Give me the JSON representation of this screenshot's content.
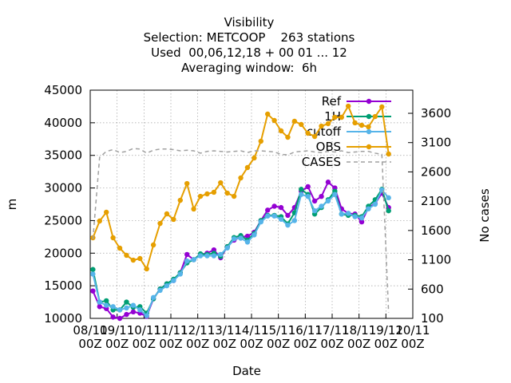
{
  "chart_data": {
    "type": "line",
    "title": [
      "Visibility",
      "Selection: METCOOP    263 stations",
      "Used  00,06,12,18 + 00 01 ... 12",
      "Averaging window:  6h"
    ],
    "xlabel": "Date",
    "ylabel": "m",
    "y2label": "No cases",
    "xlim": [
      0,
      12
    ],
    "xticks": [
      {
        "value": 0,
        "label": "08/11\n00Z"
      },
      {
        "value": 1,
        "label": "09/11\n00Z"
      },
      {
        "value": 2,
        "label": "10/11\n00Z"
      },
      {
        "value": 3,
        "label": "11/11\n00Z"
      },
      {
        "value": 4,
        "label": "12/11\n00Z"
      },
      {
        "value": 5,
        "label": "13/11\n00Z"
      },
      {
        "value": 6,
        "label": "14/11\n00Z"
      },
      {
        "value": 7,
        "label": "15/11\n00Z"
      },
      {
        "value": 8,
        "label": "16/11\n00Z"
      },
      {
        "value": 9,
        "label": "17/11\n00Z"
      },
      {
        "value": 10,
        "label": "18/11\n00Z"
      },
      {
        "value": 11,
        "label": "19/11\n00Z"
      },
      {
        "value": 12,
        "label": "20/11\n00Z"
      }
    ],
    "ylim": [
      10000,
      45000
    ],
    "yticks": [
      10000,
      15000,
      20000,
      25000,
      30000,
      35000,
      40000,
      45000
    ],
    "y2lim": [
      100,
      3995
    ],
    "y2ticks": [
      100,
      600,
      1100,
      1600,
      2100,
      2600,
      3100,
      3600
    ],
    "grid": true,
    "legend": "top-right",
    "x": [
      0.1,
      0.35,
      0.6,
      0.85,
      1.1,
      1.35,
      1.6,
      1.85,
      2.1,
      2.35,
      2.6,
      2.85,
      3.1,
      3.35,
      3.6,
      3.85,
      4.1,
      4.35,
      4.6,
      4.85,
      5.1,
      5.35,
      5.6,
      5.85,
      6.1,
      6.35,
      6.6,
      6.85,
      7.1,
      7.35,
      7.6,
      7.85,
      8.1,
      8.35,
      8.6,
      8.85,
      9.1,
      9.35,
      9.6,
      9.85,
      10.1,
      10.35,
      10.6,
      10.85,
      11.1
    ],
    "series": [
      {
        "name": "Ref",
        "color": "#9400d3",
        "values": [
          14200,
          11800,
          11500,
          10200,
          10000,
          10600,
          11000,
          10800,
          10300,
          13000,
          14500,
          15300,
          15800,
          17000,
          19800,
          19000,
          19800,
          20000,
          20500,
          19300,
          21000,
          22000,
          22500,
          22600,
          23200,
          25000,
          26600,
          27200,
          27000,
          25800,
          27000,
          29500,
          30200,
          28000,
          28700,
          30900,
          30000,
          26800,
          26100,
          26000,
          24800,
          27000,
          27600,
          29200,
          27000
        ]
      },
      {
        "name": "1H",
        "color": "#009e73",
        "values": [
          17500,
          12500,
          12700,
          11300,
          11300,
          12500,
          11700,
          11800,
          10800,
          13000,
          14500,
          15300,
          16000,
          17000,
          18500,
          19000,
          19900,
          19800,
          20000,
          19500,
          21000,
          22400,
          22700,
          22000,
          23000,
          25000,
          25800,
          25800,
          25600,
          24500,
          26200,
          29800,
          29000,
          26000,
          27000,
          28200,
          29500,
          26000,
          25800,
          25800,
          25600,
          27200,
          28200,
          29800,
          26500
        ]
      },
      {
        "name": "cutoff",
        "color": "#56b4e9",
        "values": [
          16800,
          12500,
          12000,
          11800,
          11300,
          11600,
          12000,
          11300,
          10400,
          13200,
          14300,
          15000,
          15800,
          16800,
          18800,
          19000,
          19600,
          19600,
          19600,
          19800,
          20800,
          22200,
          22300,
          21700,
          22800,
          24800,
          25700,
          25700,
          25200,
          24300,
          25000,
          29000,
          28700,
          26500,
          27200,
          28000,
          29000,
          26000,
          26100,
          25600,
          25400,
          26800,
          27500,
          29700,
          28500
        ]
      },
      {
        "name": "OBS",
        "color": "#e69f00",
        "values": [
          22360,
          24930,
          26280,
          22360,
          20770,
          19670,
          18930,
          19180,
          17590,
          21260,
          24560,
          26030,
          25180,
          28110,
          30680,
          26770,
          28720,
          29090,
          29340,
          30800,
          29210,
          28720,
          31540,
          33130,
          34600,
          37170,
          41330,
          40350,
          38760,
          37780,
          40230,
          39740,
          38390,
          37900,
          39490,
          39860,
          40840,
          40840,
          42550,
          39990,
          39620,
          39370,
          40960,
          42430,
          35210
        ]
      },
      {
        "name": "CASES",
        "color": "#a0a0a0",
        "axis": "y2",
        "dashed": true,
        "values": [
          1450,
          2850,
          2950,
          2980,
          2930,
          2950,
          3000,
          2990,
          2920,
          2970,
          2990,
          2990,
          2980,
          2960,
          2970,
          2960,
          2920,
          2950,
          2960,
          2950,
          2940,
          2950,
          2960,
          2930,
          2960,
          2960,
          2950,
          2940,
          2900,
          2890,
          2940,
          2950,
          2960,
          2940,
          2930,
          2950,
          2940,
          2960,
          2930,
          2940,
          2950,
          2950,
          2920,
          2900,
          200
        ]
      }
    ]
  }
}
